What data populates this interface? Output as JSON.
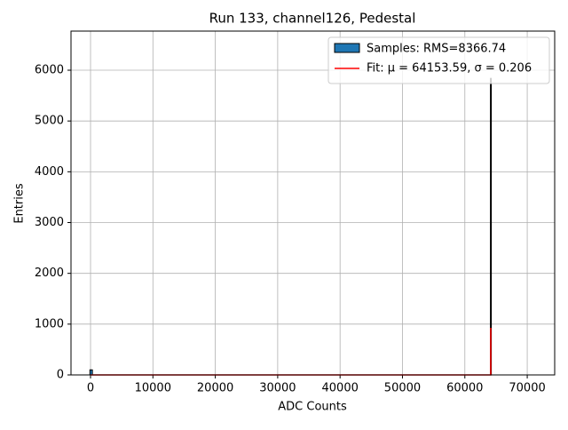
{
  "chart_data": {
    "type": "histogram",
    "title": "Run 133, channel126, Pedestal",
    "xlabel": "ADC Counts",
    "ylabel": "Entries",
    "histogram": {
      "name": "Samples: RMS=8366.74",
      "color": "#1f77b4",
      "edgecolor": "#000000",
      "bins": [
        -100,
        300,
        64100,
        64200
      ],
      "counts": [
        100,
        0,
        5840
      ]
    },
    "fit": {
      "name": "Fit: μ = 64153.59, σ = 0.206",
      "color": "#ff0000",
      "x": [
        0,
        64150,
        64153.59
      ],
      "y": [
        0,
        0,
        927
      ]
    },
    "xlim": [
      -3130,
      74400
    ],
    "ylim": [
      0,
      6770
    ],
    "xticks": [
      0,
      10000,
      20000,
      30000,
      40000,
      50000,
      60000,
      70000
    ],
    "yticks": [
      0,
      1000,
      2000,
      3000,
      4000,
      5000,
      6000
    ],
    "grid": true,
    "legend": "upper right"
  }
}
